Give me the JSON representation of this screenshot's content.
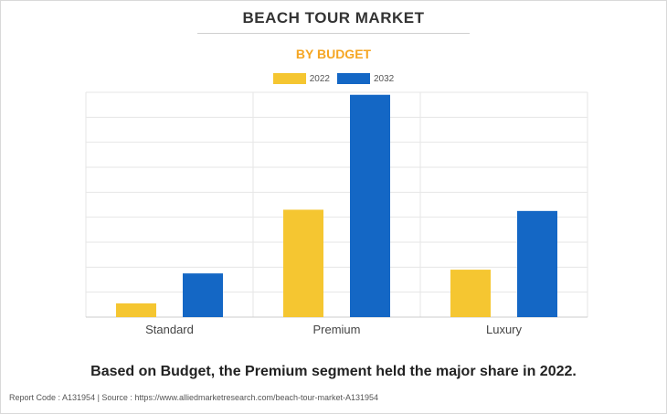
{
  "header": {
    "title": "BEACH TOUR MARKET",
    "subtitle": "BY BUDGET"
  },
  "colors": {
    "series_2022": "#F5C631",
    "series_2032": "#1467C5",
    "subtitle": "#F5A623",
    "grid": "#e6e6e6"
  },
  "chart_data": {
    "type": "bar",
    "categories": [
      "Standard",
      "Premium",
      "Luxury"
    ],
    "series": [
      {
        "name": "2022",
        "values": [
          0.55,
          4.3,
          1.9
        ]
      },
      {
        "name": "2032",
        "values": [
          1.75,
          8.9,
          4.25
        ]
      }
    ],
    "ylim": [
      0,
      9
    ],
    "grid": true,
    "legend": "top-center",
    "xlabel": "",
    "ylabel": ""
  },
  "footnote": "Based on Budget, the Premium segment held the major share in 2022.",
  "report_line": "Report Code : A131954  |  Source : https://www.alliedmarketresearch.com/beach-tour-market-A131954"
}
